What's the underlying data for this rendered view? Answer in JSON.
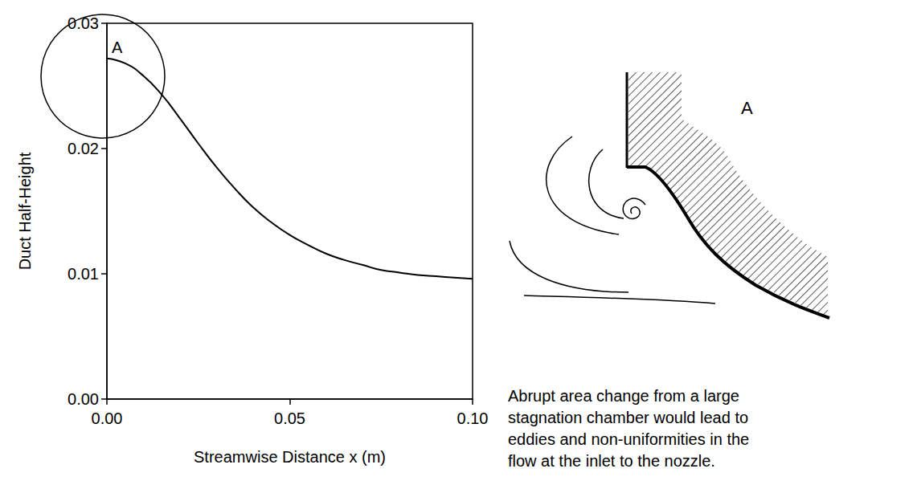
{
  "chart_data": {
    "type": "line",
    "x_label": "Streamwise Distance x (m)",
    "y_label": "Duct Half-Height",
    "annotation": "A",
    "x": [
      0,
      0.005,
      0.01,
      0.015,
      0.02,
      0.025,
      0.03,
      0.035,
      0.04,
      0.045,
      0.05,
      0.055,
      0.06,
      0.065,
      0.07,
      0.075,
      0.08,
      0.085,
      0.09,
      0.095,
      0.1
    ],
    "values": [
      0.0272,
      0.0268,
      0.0258,
      0.0243,
      0.0224,
      0.0204,
      0.0185,
      0.0168,
      0.0153,
      0.0141,
      0.0131,
      0.0123,
      0.0116,
      0.0111,
      0.0107,
      0.0103,
      0.0101,
      0.0099,
      0.0098,
      0.0097,
      0.0096
    ],
    "color": "#000000",
    "xlim": [
      0,
      0.1
    ],
    "ylim": [
      0,
      0.03
    ],
    "xticks": [
      {
        "value": 0,
        "label": "0.00"
      },
      {
        "value": 0.05,
        "label": "0.05"
      },
      {
        "value": 0.1,
        "label": "0.10"
      }
    ],
    "yticks": [
      {
        "value": 0,
        "label": "0.00"
      },
      {
        "value": 0.01,
        "label": "0.01"
      },
      {
        "value": 0.02,
        "label": "0.02"
      },
      {
        "value": 0.03,
        "label": "0.03"
      }
    ],
    "grid": false
  },
  "diagram": {
    "label": "A",
    "caption": [
      "Abrupt area change from a large",
      "stagnation chamber would lead to",
      "eddies and non-uniformities in the",
      "flow at the inlet to the nozzle."
    ]
  }
}
